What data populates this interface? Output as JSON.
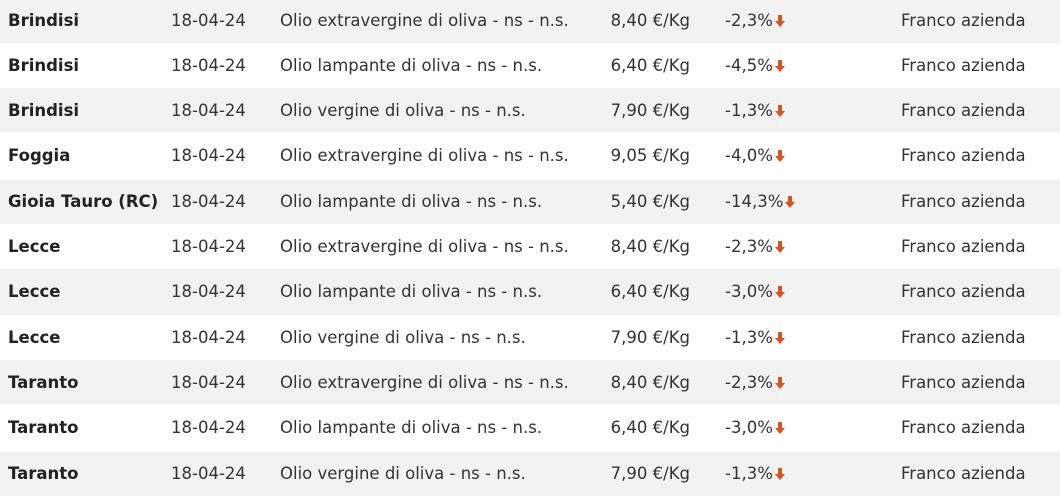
{
  "table": {
    "rows": [
      [
        "Brindisi",
        "18-04-24",
        "Olio extravergine di oliva - ns - n.s.",
        "8,40 €/Kg",
        "-2,3%",
        "Franco azienda"
      ],
      [
        "Brindisi",
        "18-04-24",
        "Olio lampante di oliva - ns - n.s.",
        "6,40 €/Kg",
        "-4,5%",
        "Franco azienda"
      ],
      [
        "Brindisi",
        "18-04-24",
        "Olio vergine di oliva - ns - n.s.",
        "7,90 €/Kg",
        "-1,3%",
        "Franco azienda"
      ],
      [
        "Foggia",
        "18-04-24",
        "Olio extravergine di oliva - ns - n.s.",
        "9,05 €/Kg",
        "-4,0%",
        "Franco azienda"
      ],
      [
        "Gioia Tauro (RC)",
        "18-04-24",
        "Olio lampante di oliva - ns - n.s.",
        "5,40 €/Kg",
        "-14,3%",
        "Franco azienda"
      ],
      [
        "Lecce",
        "18-04-24",
        "Olio extravergine di oliva - ns - n.s.",
        "8,40 €/Kg",
        "-2,3%",
        "Franco azienda"
      ],
      [
        "Lecce",
        "18-04-24",
        "Olio lampante di oliva - ns - n.s.",
        "6,40 €/Kg",
        "-3,0%",
        "Franco azienda"
      ],
      [
        "Lecce",
        "18-04-24",
        "Olio vergine di oliva - ns - n.s.",
        "7,90 €/Kg",
        "-1,3%",
        "Franco azienda"
      ],
      [
        "Taranto",
        "18-04-24",
        "Olio extravergine di oliva - ns - n.s.",
        "8,40 €/Kg",
        "-2,3%",
        "Franco azienda"
      ],
      [
        "Taranto",
        "18-04-24",
        "Olio lampante di oliva - ns - n.s.",
        "6,40 €/Kg",
        "-3,0%",
        "Franco azienda"
      ],
      [
        "Taranto",
        "18-04-24",
        "Olio vergine di oliva - ns - n.s.",
        "7,90 €/Kg",
        "-1,3%",
        "Franco azienda"
      ]
    ]
  }
}
